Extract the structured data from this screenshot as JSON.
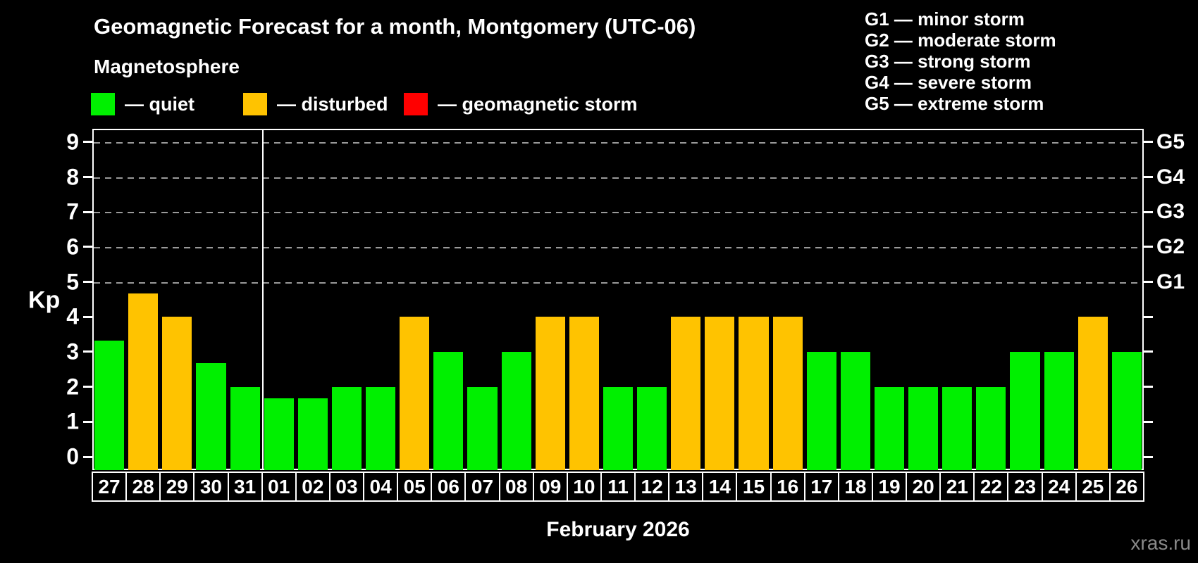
{
  "header": {
    "title": "Geomagnetic Forecast for a month, Montgomery (UTC-06)",
    "subtitle": "Magnetosphere"
  },
  "legend": {
    "items": [
      {
        "status": "quiet",
        "label": "— quiet",
        "color": "#00f000"
      },
      {
        "status": "disturbed",
        "label": "— disturbed",
        "color": "#ffc300"
      },
      {
        "status": "storm",
        "label": "— geomagnetic storm",
        "color": "#ff0000"
      }
    ]
  },
  "storm_scale": [
    "G1 — minor storm",
    "G2 — moderate storm",
    "G3 — strong storm",
    "G4 — severe storm",
    "G5 — extreme storm"
  ],
  "watermark": "xras.ru",
  "chart_data": {
    "type": "bar",
    "title": "Geomagnetic Forecast for a month, Montgomery (UTC-06)",
    "ylabel": "Kp",
    "xlabel": "February 2026",
    "ylim": [
      0,
      9
    ],
    "yticks": [
      0,
      1,
      2,
      3,
      4,
      5,
      6,
      7,
      8,
      9
    ],
    "gridlines_at": [
      5,
      6,
      7,
      8,
      9
    ],
    "grid": "dashed-horizontal-at-storm-levels",
    "legend_position": "top-left",
    "right_axis": [
      {
        "value": 5,
        "label": "G1"
      },
      {
        "value": 6,
        "label": "G2"
      },
      {
        "value": 7,
        "label": "G3"
      },
      {
        "value": 8,
        "label": "G4"
      },
      {
        "value": 9,
        "label": "G5"
      }
    ],
    "month_divider_after_index": 4,
    "colors": {
      "quiet": "#00f000",
      "disturbed": "#ffc300",
      "storm": "#ff0000"
    },
    "bars": [
      {
        "day": "27",
        "value": 3.33,
        "status": "quiet"
      },
      {
        "day": "28",
        "value": 4.67,
        "status": "disturbed"
      },
      {
        "day": "29",
        "value": 4.0,
        "status": "disturbed"
      },
      {
        "day": "30",
        "value": 2.67,
        "status": "quiet"
      },
      {
        "day": "31",
        "value": 2.0,
        "status": "quiet"
      },
      {
        "day": "01",
        "value": 1.67,
        "status": "quiet"
      },
      {
        "day": "02",
        "value": 1.67,
        "status": "quiet"
      },
      {
        "day": "03",
        "value": 2.0,
        "status": "quiet"
      },
      {
        "day": "04",
        "value": 2.0,
        "status": "quiet"
      },
      {
        "day": "05",
        "value": 4.0,
        "status": "disturbed"
      },
      {
        "day": "06",
        "value": 3.0,
        "status": "quiet"
      },
      {
        "day": "07",
        "value": 2.0,
        "status": "quiet"
      },
      {
        "day": "08",
        "value": 3.0,
        "status": "quiet"
      },
      {
        "day": "09",
        "value": 4.0,
        "status": "disturbed"
      },
      {
        "day": "10",
        "value": 4.0,
        "status": "disturbed"
      },
      {
        "day": "11",
        "value": 2.0,
        "status": "quiet"
      },
      {
        "day": "12",
        "value": 2.0,
        "status": "quiet"
      },
      {
        "day": "13",
        "value": 4.0,
        "status": "disturbed"
      },
      {
        "day": "14",
        "value": 4.0,
        "status": "disturbed"
      },
      {
        "day": "15",
        "value": 4.0,
        "status": "disturbed"
      },
      {
        "day": "16",
        "value": 4.0,
        "status": "disturbed"
      },
      {
        "day": "17",
        "value": 3.0,
        "status": "quiet"
      },
      {
        "day": "18",
        "value": 3.0,
        "status": "quiet"
      },
      {
        "day": "19",
        "value": 2.0,
        "status": "quiet"
      },
      {
        "day": "20",
        "value": 2.0,
        "status": "quiet"
      },
      {
        "day": "21",
        "value": 2.0,
        "status": "quiet"
      },
      {
        "day": "22",
        "value": 2.0,
        "status": "quiet"
      },
      {
        "day": "23",
        "value": 3.0,
        "status": "quiet"
      },
      {
        "day": "24",
        "value": 3.0,
        "status": "quiet"
      },
      {
        "day": "25",
        "value": 4.0,
        "status": "disturbed"
      },
      {
        "day": "26",
        "value": 3.0,
        "status": "quiet"
      }
    ]
  }
}
